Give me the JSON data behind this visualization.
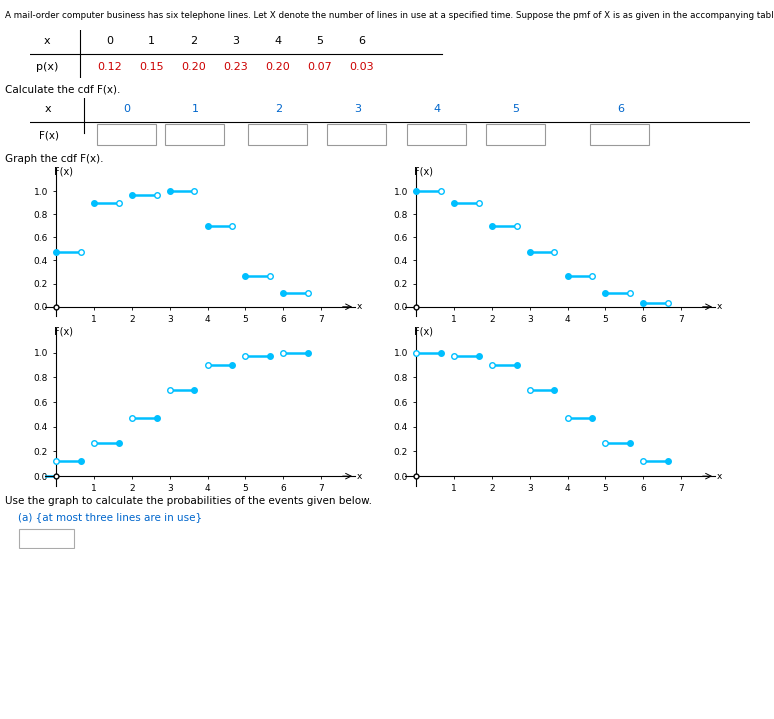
{
  "title_text": "A mail-order computer business has six telephone lines. Let X denote the number of lines in use at a specified time. Suppose the pmf of X is as given in the accompanying table.",
  "pmf_x": [
    0,
    1,
    2,
    3,
    4,
    5,
    6
  ],
  "pmf_p": [
    0.12,
    0.15,
    0.2,
    0.23,
    0.2,
    0.07,
    0.03
  ],
  "cdf_F": [
    0.12,
    0.27,
    0.47,
    0.7,
    0.9,
    0.97,
    1.0
  ],
  "line_color": "#00BFFF",
  "xlabel": "x",
  "yticks": [
    0.0,
    0.2,
    0.4,
    0.6,
    0.8,
    1.0
  ],
  "xticks": [
    1,
    2,
    3,
    4,
    5,
    6,
    7
  ],
  "graph1_y": [
    0.47,
    0.9,
    0.97,
    1.0,
    0.7,
    0.27,
    0.12
  ],
  "graph2_y": [
    1.0,
    0.9,
    0.7,
    0.47,
    0.27,
    0.12,
    0.03
  ],
  "graph3_y": [
    0.12,
    0.27,
    0.47,
    0.7,
    0.9,
    0.97,
    1.0
  ],
  "graph4_y": [
    1.0,
    0.97,
    0.9,
    0.7,
    0.47,
    0.27,
    0.12
  ]
}
